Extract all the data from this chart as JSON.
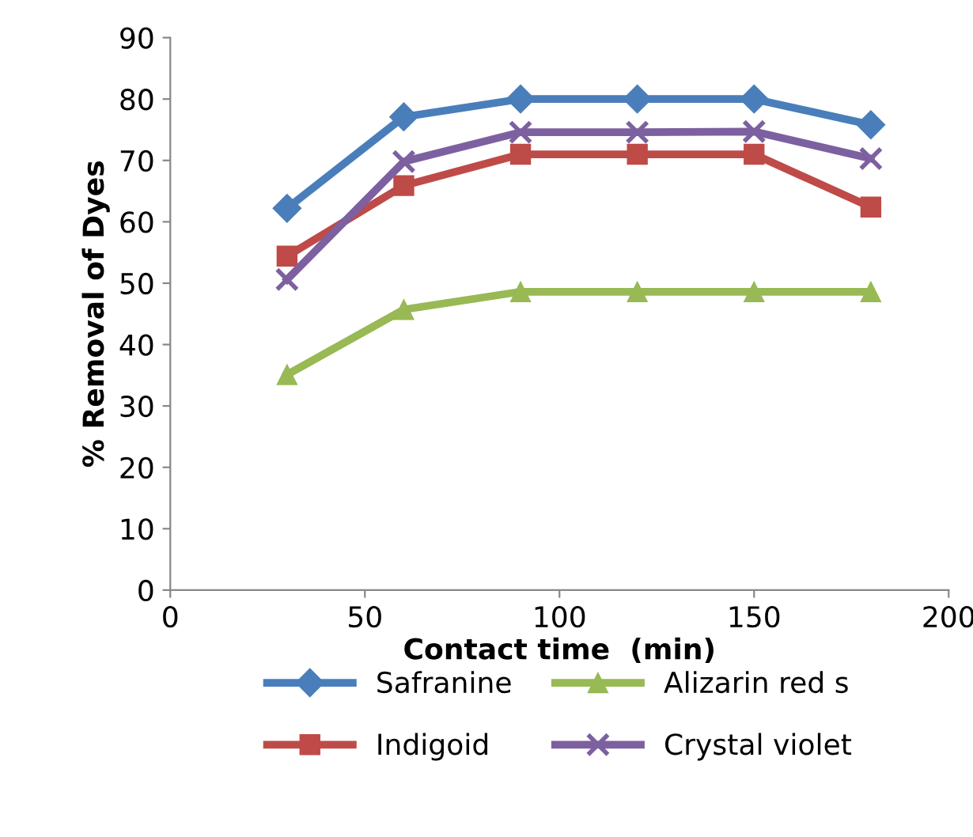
{
  "chart_data": {
    "type": "line",
    "xlabel": "Contact time  (min)",
    "ylabel": "% Removal of Dyes",
    "x": [
      30,
      60,
      90,
      120,
      150,
      180
    ],
    "xlim": [
      0,
      200
    ],
    "xticks": [
      0,
      50,
      100,
      150,
      200
    ],
    "ylim": [
      0,
      90
    ],
    "yticks": [
      0,
      10,
      20,
      30,
      40,
      50,
      60,
      70,
      80,
      90
    ],
    "grid": false,
    "legend": "bottom",
    "series": [
      {
        "name": "Safranine",
        "color": "#4a7ebb",
        "marker": "diamond",
        "values": [
          62.2,
          77.1,
          80,
          80,
          80,
          75.8
        ]
      },
      {
        "name": "Indigoid",
        "color": "#be4b48",
        "marker": "square",
        "values": [
          54.4,
          65.9,
          71,
          71,
          71,
          62.4
        ]
      },
      {
        "name": "Alizarin red s",
        "color": "#98b954",
        "marker": "triangle",
        "values": [
          35.1,
          45.7,
          48.6,
          48.6,
          48.6,
          48.6
        ]
      },
      {
        "name": "Crystal violet",
        "color": "#7d60a0",
        "marker": "cross",
        "values": [
          50.6,
          69.8,
          74.6,
          74.6,
          74.7,
          70.3
        ]
      }
    ]
  }
}
